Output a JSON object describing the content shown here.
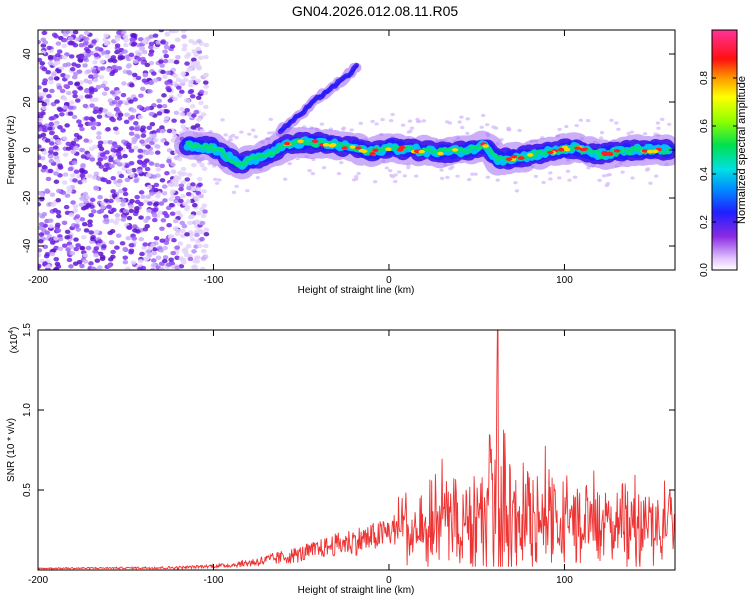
{
  "title": "GN04.2026.012.08.11.R05",
  "chart_data": [
    {
      "type": "heatmap",
      "xlabel": "Height of straight line (km)",
      "ylabel": "Frequency (Hz)",
      "xlim": [
        -200,
        163
      ],
      "ylim": [
        -50,
        50
      ],
      "x_ticks": [
        -200,
        -100,
        0,
        100
      ],
      "y_ticks": [
        -40,
        -20,
        0,
        20,
        40
      ],
      "colorbar": {
        "label": "Normalized spectral amplitude",
        "range": [
          0.0,
          1.0
        ],
        "ticks": [
          0.0,
          0.2,
          0.4,
          0.6,
          0.8
        ],
        "tick_labels": [
          "0.0",
          "0.2",
          "0.4",
          "0.6",
          "0.8"
        ],
        "colors": [
          "#ffffff",
          "#d9b3ff",
          "#8a2be2",
          "#2030ff",
          "#00d8ff",
          "#00e060",
          "#b0ff00",
          "#ffff00",
          "#ff8800",
          "#ff0000",
          "#ff30a0"
        ]
      },
      "ridge_center_hz": [
        {
          "x": -115,
          "y": 2
        },
        {
          "x": -100,
          "y": 1
        },
        {
          "x": -85,
          "y": -6
        },
        {
          "x": -70,
          "y": -2
        },
        {
          "x": -55,
          "y": 3
        },
        {
          "x": -40,
          "y": 3
        },
        {
          "x": -20,
          "y": 1
        },
        {
          "x": -10,
          "y": -1
        },
        {
          "x": 0,
          "y": 1
        },
        {
          "x": 15,
          "y": 0
        },
        {
          "x": 30,
          "y": -1
        },
        {
          "x": 45,
          "y": 0
        },
        {
          "x": 55,
          "y": 2
        },
        {
          "x": 62,
          "y": -4
        },
        {
          "x": 75,
          "y": -3
        },
        {
          "x": 90,
          "y": -1
        },
        {
          "x": 105,
          "y": 1
        },
        {
          "x": 120,
          "y": -2
        },
        {
          "x": 140,
          "y": 0
        },
        {
          "x": 160,
          "y": 0
        }
      ],
      "branch_hz": [
        {
          "x": -62,
          "y": 8
        },
        {
          "x": -50,
          "y": 15
        },
        {
          "x": -40,
          "y": 22
        },
        {
          "x": -25,
          "y": 30
        },
        {
          "x": -18,
          "y": 35
        }
      ]
    },
    {
      "type": "line",
      "xlabel": "Height of straight line (km)",
      "ylabel": "SNR (10 * v/v)",
      "y_multiplier": "(x10",
      "y_multiplier_exp": "4",
      "y_multiplier_close": ")",
      "xlim": [
        -200,
        163
      ],
      "ylim": [
        0,
        1.5
      ],
      "x_ticks": [
        -200,
        -100,
        0,
        100
      ],
      "y_ticks": [
        0.5,
        1.0,
        1.5
      ],
      "y_tick_labels": [
        "0.5",
        "1.0",
        "1.5"
      ],
      "color": "#ee3333",
      "envelope": [
        {
          "x": -200,
          "y": 0.02
        },
        {
          "x": -150,
          "y": 0.025
        },
        {
          "x": -110,
          "y": 0.04
        },
        {
          "x": -90,
          "y": 0.06
        },
        {
          "x": -75,
          "y": 0.12
        },
        {
          "x": -60,
          "y": 0.18
        },
        {
          "x": -40,
          "y": 0.26
        },
        {
          "x": -20,
          "y": 0.38
        },
        {
          "x": -5,
          "y": 0.42
        },
        {
          "x": 10,
          "y": 0.55
        },
        {
          "x": 25,
          "y": 0.75
        },
        {
          "x": 40,
          "y": 0.8
        },
        {
          "x": 55,
          "y": 0.95
        },
        {
          "x": 62,
          "y": 1.5
        },
        {
          "x": 70,
          "y": 1.0
        },
        {
          "x": 85,
          "y": 0.9
        },
        {
          "x": 100,
          "y": 0.8
        },
        {
          "x": 120,
          "y": 0.75
        },
        {
          "x": 140,
          "y": 0.7
        },
        {
          "x": 163,
          "y": 0.7
        }
      ],
      "mean": [
        {
          "x": -200,
          "y": 0.01
        },
        {
          "x": -120,
          "y": 0.015
        },
        {
          "x": -90,
          "y": 0.03
        },
        {
          "x": -70,
          "y": 0.06
        },
        {
          "x": -50,
          "y": 0.1
        },
        {
          "x": -30,
          "y": 0.16
        },
        {
          "x": -10,
          "y": 0.2
        },
        {
          "x": 10,
          "y": 0.28
        },
        {
          "x": 30,
          "y": 0.36
        },
        {
          "x": 60,
          "y": 0.4
        },
        {
          "x": 100,
          "y": 0.38
        },
        {
          "x": 140,
          "y": 0.36
        },
        {
          "x": 163,
          "y": 0.38
        }
      ]
    }
  ]
}
